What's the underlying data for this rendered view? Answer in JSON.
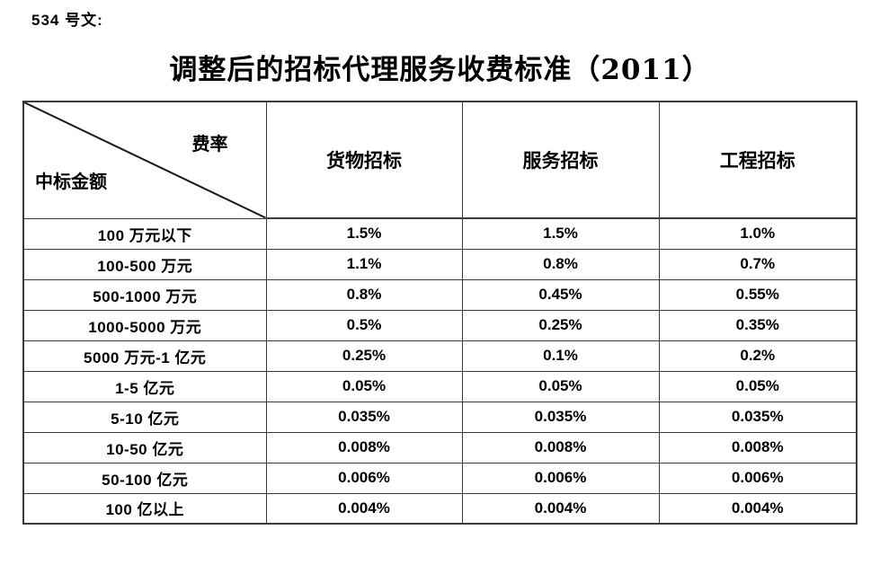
{
  "page": {
    "doc_label": "534 号文:",
    "title": "调整后的招标代理服务收费标准（2011）"
  },
  "table": {
    "corner": {
      "top_right_label": "费率",
      "bottom_left_label": "中标金额"
    },
    "columns": [
      "货物招标",
      "服务招标",
      "工程招标"
    ],
    "rows": [
      {
        "range": "100 万元以下",
        "values": [
          "1.5%",
          "1.5%",
          "1.0%"
        ]
      },
      {
        "range": "100-500 万元",
        "values": [
          "1.1%",
          "0.8%",
          "0.7%"
        ]
      },
      {
        "range": "500-1000 万元",
        "values": [
          "0.8%",
          "0.45%",
          "0.55%"
        ]
      },
      {
        "range": "1000-5000 万元",
        "values": [
          "0.5%",
          "0.25%",
          "0.35%"
        ]
      },
      {
        "range": "5000 万元-1 亿元",
        "values": [
          "0.25%",
          "0.1%",
          "0.2%"
        ]
      },
      {
        "range": "1-5 亿元",
        "values": [
          "0.05%",
          "0.05%",
          "0.05%"
        ]
      },
      {
        "range": "5-10 亿元",
        "values": [
          "0.035%",
          "0.035%",
          "0.035%"
        ]
      },
      {
        "range": "10-50 亿元",
        "values": [
          "0.008%",
          "0.008%",
          "0.008%"
        ]
      },
      {
        "range": "50-100 亿元",
        "values": [
          "0.006%",
          "0.006%",
          "0.006%"
        ]
      },
      {
        "range": "100 亿以上",
        "values": [
          "0.004%",
          "0.004%",
          "0.004%"
        ]
      }
    ]
  },
  "colors": {
    "border": "#3a3a3a",
    "text": "#000000",
    "background": "#ffffff"
  }
}
